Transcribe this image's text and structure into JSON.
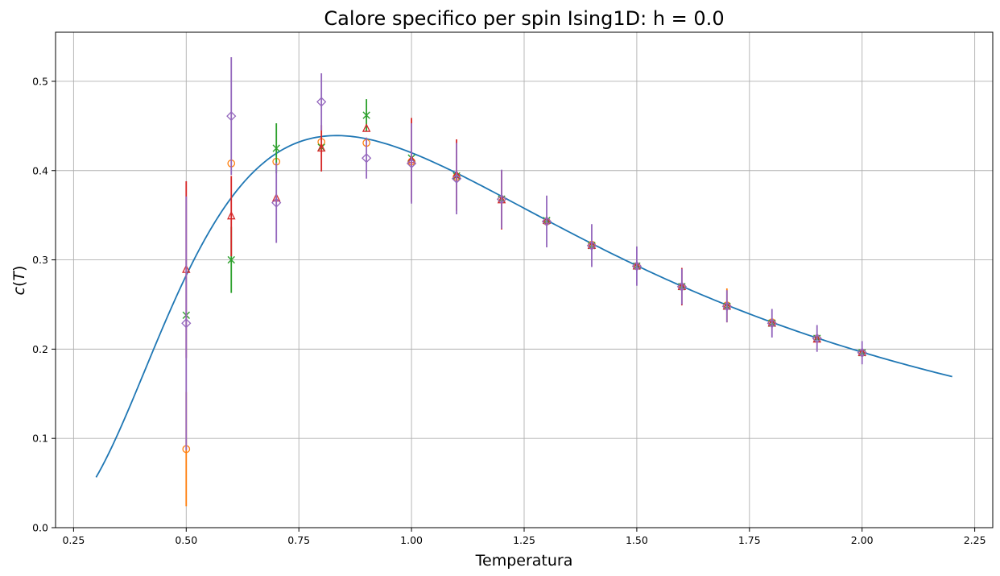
{
  "chart_data": {
    "type": "scatter",
    "title": "Calore specifico per spin Ising1D: h = 0.0",
    "xlabel": "Temperatura",
    "ylabel": "c(T)",
    "xlim": [
      0.21,
      2.29
    ],
    "ylim": [
      0.0,
      0.555
    ],
    "grid": true,
    "legend": "none",
    "x_ticks": [
      "0.25",
      "0.50",
      "0.75",
      "1.00",
      "1.25",
      "1.50",
      "1.75",
      "2.00",
      "2.25"
    ],
    "y_ticks": [
      "0.0",
      "0.1",
      "0.2",
      "0.3",
      "0.4",
      "0.5"
    ],
    "curve": {
      "color": "#1f77b4",
      "x_range": [
        0.3,
        2.2
      ],
      "formula": "(1/T)^2 / cosh(1/T)^2"
    },
    "series": [
      {
        "marker": "circle",
        "color": "#ff7f0e",
        "x": [
          0.5,
          0.6,
          0.7,
          0.8,
          0.9,
          1.0,
          1.1,
          1.2,
          1.3,
          1.4,
          1.5,
          1.6,
          1.7,
          1.8,
          1.9,
          2.0
        ],
        "y": [
          0.088,
          0.408,
          0.41,
          0.432,
          0.431,
          0.41,
          0.393,
          0.368,
          0.343,
          0.317,
          0.293,
          0.27,
          0.249,
          0.23,
          0.212,
          0.196
        ],
        "err": [
          0.064,
          0.0,
          0.0,
          0.0,
          0.0,
          0.0,
          0.0,
          0.0,
          0.0,
          0.0,
          0.0,
          0.0,
          0.019,
          0.0,
          0.0,
          0.0
        ]
      },
      {
        "marker": "x",
        "color": "#2ca02c",
        "x": [
          0.5,
          0.6,
          0.7,
          0.8,
          0.9,
          1.0,
          1.1,
          1.2,
          1.3,
          1.4,
          1.5,
          1.6,
          1.7,
          1.8,
          1.9,
          2.0
        ],
        "y": [
          0.238,
          0.3,
          0.425,
          0.426,
          0.462,
          0.414,
          0.394,
          0.368,
          0.344,
          0.316,
          0.293,
          0.27,
          0.248,
          0.229,
          0.212,
          0.196
        ],
        "err": [
          0.0,
          0.037,
          0.028,
          0.0,
          0.018,
          0.0,
          0.0,
          0.0,
          0.0,
          0.0,
          0.0,
          0.0,
          0.0,
          0.0,
          0.0,
          0.0
        ]
      },
      {
        "marker": "triangle",
        "color": "#d62728",
        "x": [
          0.5,
          0.6,
          0.7,
          0.8,
          0.9,
          1.0,
          1.1,
          1.2,
          1.3,
          1.4,
          1.5,
          1.6,
          1.7,
          1.8,
          1.9,
          2.0
        ],
        "y": [
          0.289,
          0.349,
          0.369,
          0.425,
          0.447,
          0.412,
          0.395,
          0.367,
          0.344,
          0.316,
          0.293,
          0.27,
          0.248,
          0.229,
          0.211,
          0.196
        ],
        "err": [
          0.099,
          0.045,
          0.0,
          0.026,
          0.0,
          0.047,
          0.04,
          0.033,
          0.0,
          0.0,
          0.0,
          0.021,
          0.0,
          0.0,
          0.0,
          0.0
        ]
      },
      {
        "marker": "diamond",
        "color": "#9467bd",
        "x": [
          0.5,
          0.6,
          0.7,
          0.8,
          0.9,
          1.0,
          1.1,
          1.2,
          1.3,
          1.4,
          1.5,
          1.6,
          1.7,
          1.8,
          1.9,
          2.0
        ],
        "y": [
          0.229,
          0.461,
          0.364,
          0.477,
          0.414,
          0.408,
          0.391,
          0.368,
          0.343,
          0.316,
          0.293,
          0.27,
          0.248,
          0.229,
          0.212,
          0.196
        ],
        "err": [
          0.142,
          0.066,
          0.045,
          0.032,
          0.023,
          0.045,
          0.04,
          0.033,
          0.029,
          0.024,
          0.022,
          0.02,
          0.018,
          0.016,
          0.015,
          0.013
        ]
      }
    ]
  }
}
